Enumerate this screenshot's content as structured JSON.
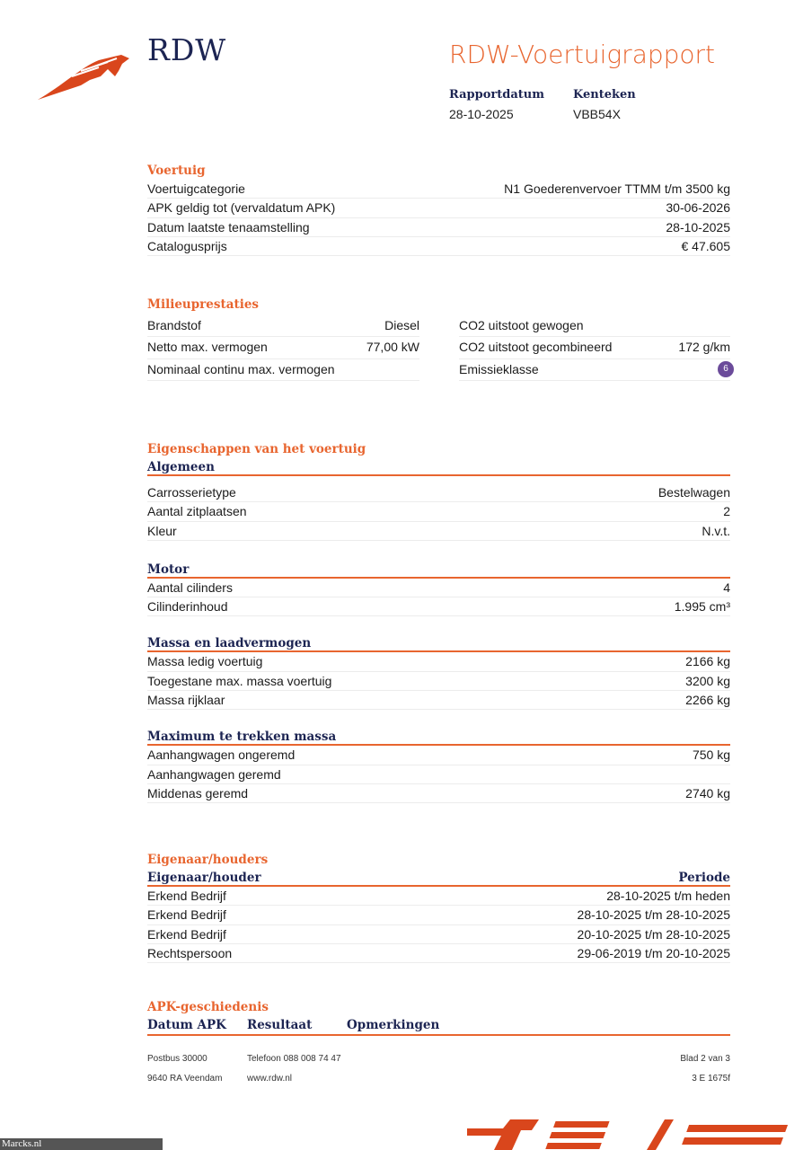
{
  "header": {
    "logo_text": "RDW",
    "title": "RDW-Voertuigrapport",
    "rapportdatum_label": "Rapportdatum",
    "rapportdatum": "28-10-2025",
    "kenteken_label": "Kenteken",
    "kenteken": "VBB54X"
  },
  "voertuig": {
    "title": "Voertuig",
    "rows": [
      {
        "label": "Voertuigcategorie",
        "value": "N1 Goederenvervoer TTMM t/m 3500 kg"
      },
      {
        "label": "APK geldig tot (vervaldatum APK)",
        "value": "30-06-2026"
      },
      {
        "label": "Datum laatste tenaamstelling",
        "value": "28-10-2025"
      },
      {
        "label": "Catalogusprijs",
        "value": "€ 47.605"
      }
    ]
  },
  "milieu": {
    "title": "Milieuprestaties",
    "rows": [
      {
        "l1": "Brandstof",
        "v1": "Diesel",
        "l2": "CO2 uitstoot gewogen",
        "v2": ""
      },
      {
        "l1": "Netto max. vermogen",
        "v1": "77,00 kW",
        "l2": "CO2 uitstoot gecombineerd",
        "v2": "172 g/km"
      },
      {
        "l1": "Nominaal continu max. vermogen",
        "v1": "",
        "l2": "Emissieklasse",
        "v2": "6"
      }
    ],
    "badge_color": "#6b4b9a"
  },
  "eigenschappen": {
    "title": "Eigenschappen van het voertuig",
    "groups": [
      {
        "title": "Algemeen",
        "rows": [
          {
            "label": "Carrosserietype",
            "value": "Bestelwagen"
          },
          {
            "label": "Aantal zitplaatsen",
            "value": "2"
          },
          {
            "label": "Kleur",
            "value": "N.v.t."
          }
        ]
      },
      {
        "title": "Motor",
        "rows": [
          {
            "label": "Aantal cilinders",
            "value": "4"
          },
          {
            "label": "Cilinderinhoud",
            "value": "1.995 cm³"
          }
        ]
      },
      {
        "title": "Massa en laadvermogen",
        "rows": [
          {
            "label": "Massa ledig voertuig",
            "value": "2166 kg"
          },
          {
            "label": "Toegestane max. massa voertuig",
            "value": "3200 kg"
          },
          {
            "label": "Massa rijklaar",
            "value": "2266 kg"
          }
        ]
      },
      {
        "title": "Maximum te trekken massa",
        "rows": [
          {
            "label": "Aanhangwagen ongeremd",
            "value": "750 kg"
          },
          {
            "label": "Aanhangwagen geremd",
            "value": ""
          },
          {
            "label": "Middenas geremd",
            "value": "2740 kg"
          }
        ]
      }
    ]
  },
  "eigenaar": {
    "title": "Eigenaar/houders",
    "col1": "Eigenaar/houder",
    "col2": "Periode",
    "rows": [
      {
        "label": "Erkend Bedrijf",
        "value": "28-10-2025 t/m heden"
      },
      {
        "label": "Erkend Bedrijf",
        "value": "28-10-2025 t/m 28-10-2025"
      },
      {
        "label": "Erkend Bedrijf",
        "value": "20-10-2025 t/m 28-10-2025"
      },
      {
        "label": "Rechtspersoon",
        "value": "29-06-2019 t/m 20-10-2025"
      }
    ]
  },
  "apk": {
    "title": "APK-geschiedenis",
    "cols": [
      "Datum APK",
      "Resultaat",
      "Opmerkingen"
    ]
  },
  "footer": {
    "address1": "Postbus 30000",
    "address2": "9640 RA Veendam",
    "phone": "Telefoon 088 008 74 47",
    "web": "www.rdw.nl",
    "page": "Blad 2 van 3",
    "code": "3 E 1675f"
  },
  "watermark": {
    "text": "Marcks.nl"
  },
  "colors": {
    "accent": "#e8652f",
    "navy": "#1c2452"
  }
}
